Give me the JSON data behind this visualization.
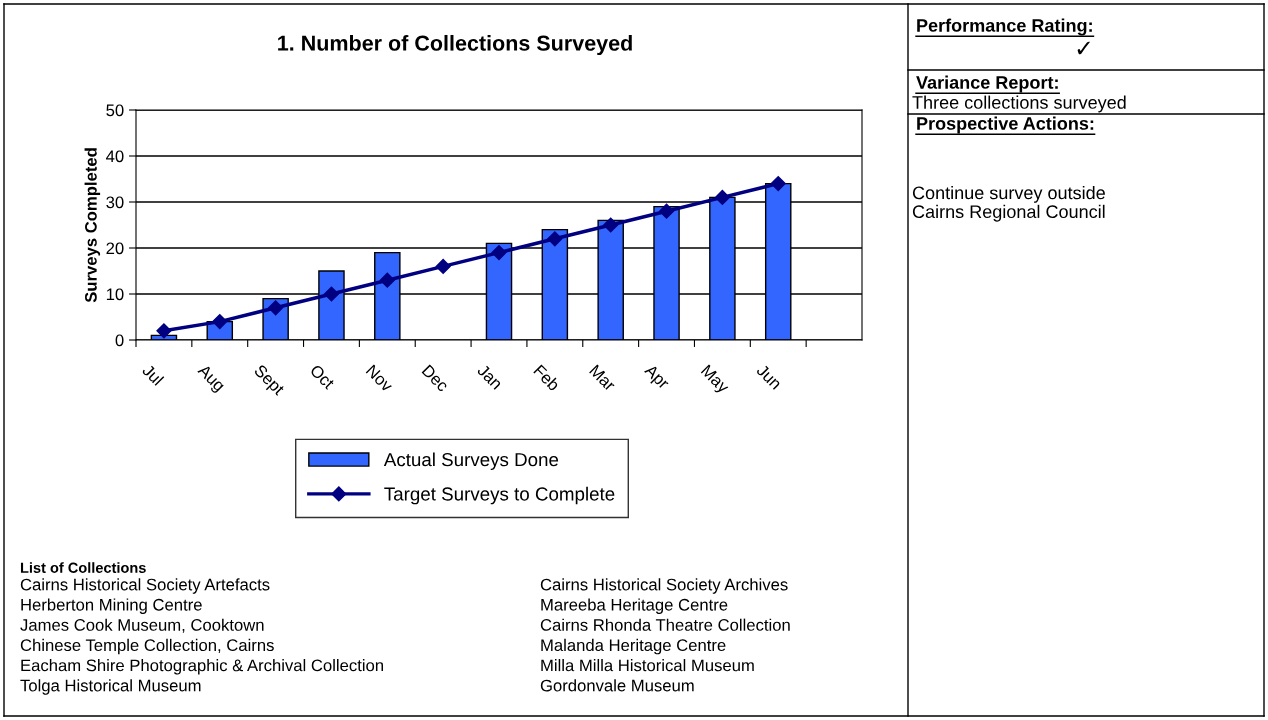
{
  "chart_data": {
    "type": "bar",
    "title": "1. Number of Collections Surveyed",
    "ylabel": "Surveys Completed",
    "categories": [
      "Jul",
      "Aug",
      "Sept",
      "Oct",
      "Nov",
      "Dec",
      "Jan",
      "Feb",
      "Mar",
      "Apr",
      "May",
      "Jun",
      null
    ],
    "series": [
      {
        "name": "Actual Surveys Done",
        "color": "#3366ff",
        "values": [
          1,
          4,
          9,
          15,
          19,
          null,
          21,
          24,
          26,
          29,
          31,
          34,
          null
        ]
      },
      {
        "name": "Target Surveys to Complete",
        "type": "line",
        "color": "#000080",
        "marker": "diamond",
        "values": [
          2,
          4,
          7,
          10,
          13,
          16,
          19,
          22,
          25,
          28,
          31,
          34,
          null
        ]
      }
    ],
    "ylim": [
      0,
      50
    ],
    "yticks": [
      0,
      10,
      20,
      30,
      40,
      50
    ],
    "grid": "y",
    "legend": "bottom",
    "annotations": [
      "Performance Rating:",
      "✓",
      "Variance Report:",
      "Three collections surveyed",
      "Prospective Actions:",
      "Continue survey outside\nCairns Regional Council",
      "List of Collections",
      "Cairns Historical Society Artefacts",
      "Herberton Mining Centre",
      "James Cook Museum, Cooktown",
      "Chinese Temple Collection, Cairns",
      "Eacham Shire Photographic & Archival Collection",
      "Tolga Historical Museum",
      "Cairns Historical Society Archives",
      "Mareeba Heritage Centre",
      "Cairns Rhonda Theatre Collection",
      "Malanda Heritage Centre",
      "Milla Milla Historical Museum",
      "Gordonvale Museum"
    ]
  }
}
